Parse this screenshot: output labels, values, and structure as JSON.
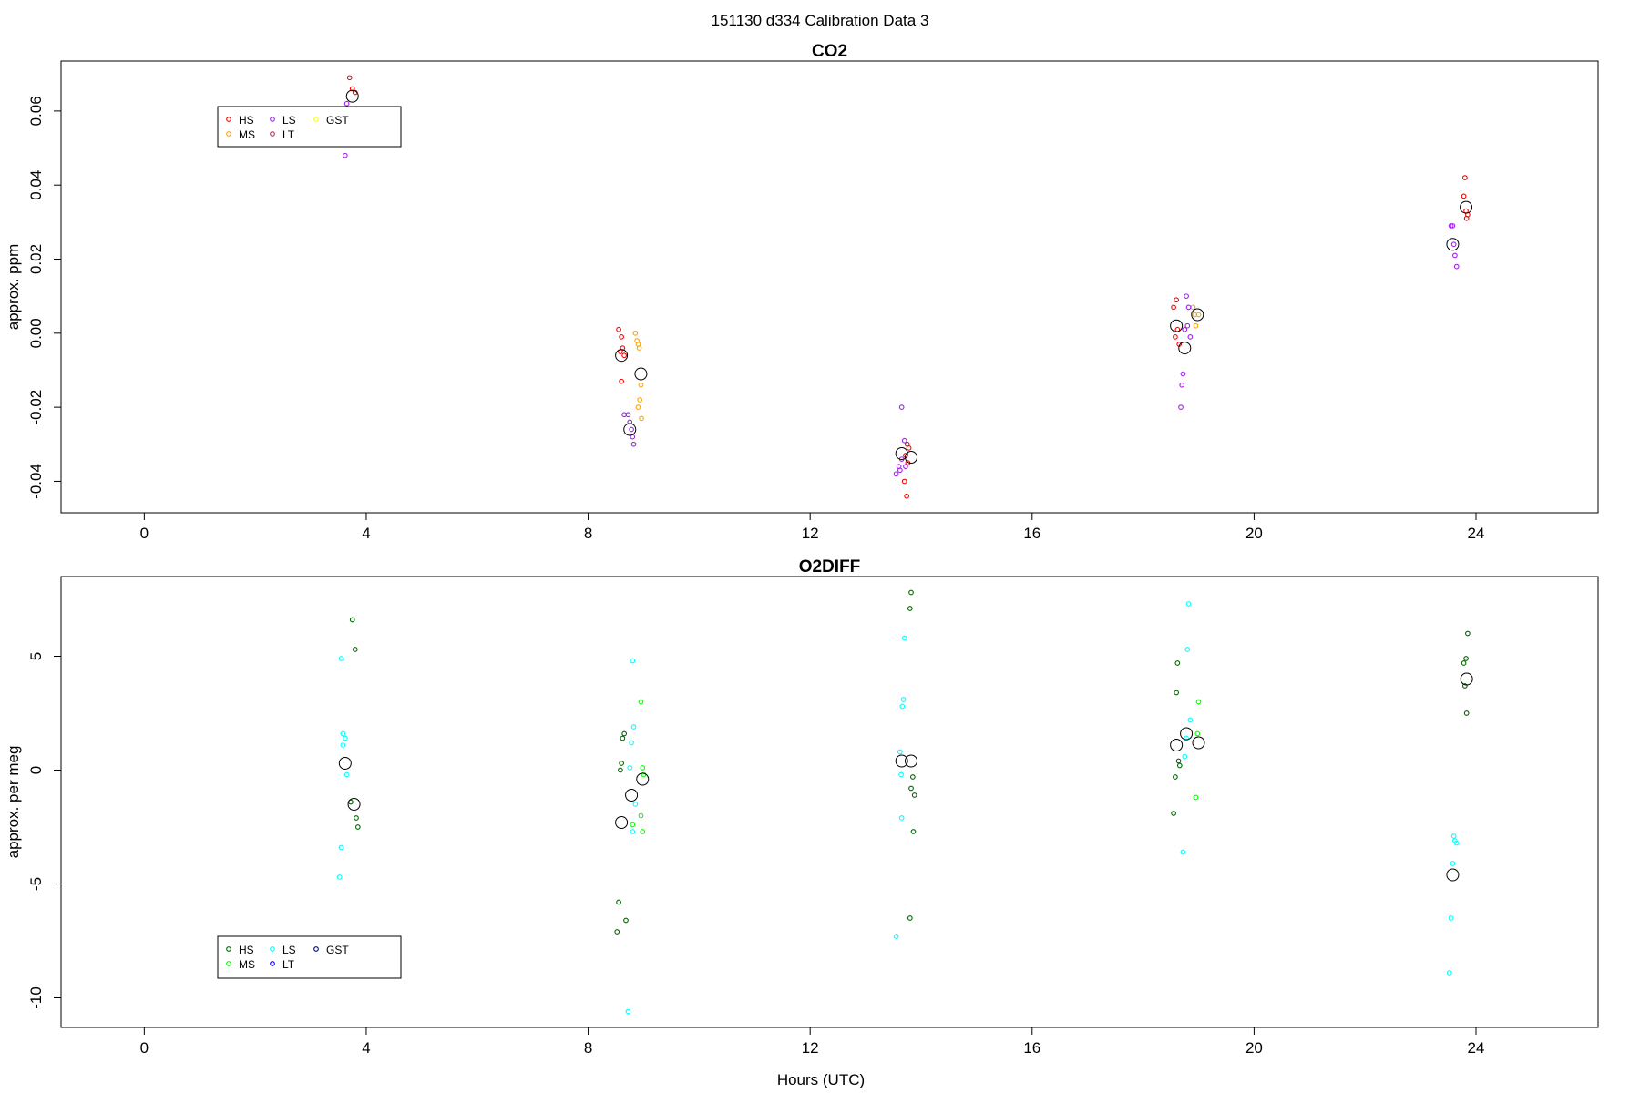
{
  "page": {
    "title": "151130   d334   Calibration Data 3",
    "xlabel": "Hours (UTC)"
  },
  "chart_data": [
    {
      "type": "scatter",
      "title": "CO2",
      "ylabel": "approx. ppm",
      "xlim": [
        -1.5,
        26.2
      ],
      "ylim": [
        -0.0485,
        0.0735
      ],
      "xticks": [
        0,
        4,
        8,
        12,
        16,
        20,
        24
      ],
      "yticks": [
        -0.04,
        -0.02,
        0.0,
        0.02,
        0.04,
        0.06
      ],
      "ytick_labels": [
        "-0.04",
        "-0.02",
        "0.00",
        "0.02",
        "0.04",
        "0.06"
      ],
      "legend": {
        "position": "top-left",
        "entries": [
          {
            "name": "HS",
            "color": "#ff0000"
          },
          {
            "name": "MS",
            "color": "#ffa500"
          },
          {
            "name": "LS",
            "color": "#a020f0"
          },
          {
            "name": "LT",
            "color": "#b03060"
          },
          {
            "name": "GST",
            "color": "#ffff00"
          }
        ]
      },
      "series": [
        {
          "name": "HS",
          "color": "#ff0000",
          "points": [
            [
              3.7,
              0.069
            ],
            [
              3.75,
              0.066
            ],
            [
              3.8,
              0.065
            ],
            [
              8.55,
              0.001
            ],
            [
              8.6,
              -0.001
            ],
            [
              8.62,
              -0.004
            ],
            [
              8.58,
              -0.005
            ],
            [
              8.65,
              -0.006
            ],
            [
              8.6,
              -0.013
            ],
            [
              13.75,
              -0.03
            ],
            [
              13.78,
              -0.031
            ],
            [
              13.72,
              -0.033
            ],
            [
              13.76,
              -0.035
            ],
            [
              13.7,
              -0.04
            ],
            [
              13.74,
              -0.044
            ],
            [
              18.6,
              0.009
            ],
            [
              18.55,
              0.007
            ],
            [
              18.62,
              0.001
            ],
            [
              18.58,
              -0.001
            ],
            [
              18.65,
              -0.003
            ],
            [
              23.8,
              0.042
            ],
            [
              23.78,
              0.037
            ],
            [
              23.82,
              0.033
            ],
            [
              23.85,
              0.032
            ],
            [
              23.83,
              0.031
            ]
          ]
        },
        {
          "name": "MS",
          "color": "#ffa500",
          "points": [
            [
              8.85,
              0.0
            ],
            [
              8.88,
              -0.002
            ],
            [
              8.9,
              -0.003
            ],
            [
              8.92,
              -0.004
            ],
            [
              8.95,
              -0.014
            ],
            [
              8.93,
              -0.018
            ],
            [
              8.9,
              -0.02
            ],
            [
              8.96,
              -0.023
            ],
            [
              18.9,
              0.007
            ],
            [
              18.93,
              0.005
            ],
            [
              18.95,
              0.002
            ],
            [
              19.0,
              0.005
            ]
          ]
        },
        {
          "name": "LS",
          "color": "#a020f0",
          "points": [
            [
              3.65,
              0.062
            ],
            [
              3.62,
              0.048
            ],
            [
              8.65,
              -0.022
            ],
            [
              8.72,
              -0.022
            ],
            [
              8.75,
              -0.024
            ],
            [
              8.78,
              -0.026
            ],
            [
              8.8,
              -0.028
            ],
            [
              8.82,
              -0.03
            ],
            [
              13.65,
              -0.02
            ],
            [
              13.7,
              -0.029
            ],
            [
              13.6,
              -0.036
            ],
            [
              13.62,
              -0.037
            ],
            [
              13.55,
              -0.038
            ],
            [
              13.72,
              -0.036
            ],
            [
              13.65,
              -0.034
            ],
            [
              18.78,
              0.01
            ],
            [
              18.82,
              0.007
            ],
            [
              18.8,
              0.002
            ],
            [
              18.75,
              0.001
            ],
            [
              18.85,
              -0.001
            ],
            [
              18.72,
              -0.011
            ],
            [
              18.7,
              -0.014
            ],
            [
              18.68,
              -0.02
            ],
            [
              23.55,
              0.029
            ],
            [
              23.58,
              0.029
            ],
            [
              23.6,
              0.024
            ],
            [
              23.62,
              0.021
            ],
            [
              23.65,
              0.018
            ]
          ]
        }
      ],
      "means": [
        [
          3.75,
          0.064
        ],
        [
          8.6,
          -0.006
        ],
        [
          8.75,
          -0.026
        ],
        [
          8.95,
          -0.011
        ],
        [
          13.65,
          -0.0325
        ],
        [
          13.82,
          -0.0335
        ],
        [
          18.6,
          0.002
        ],
        [
          18.75,
          -0.004
        ],
        [
          18.98,
          0.005
        ],
        [
          23.58,
          0.024
        ],
        [
          23.82,
          0.034
        ]
      ]
    },
    {
      "type": "scatter",
      "title": "O2DIFF",
      "ylabel": "approx. per meg",
      "xlim": [
        -1.5,
        26.2
      ],
      "ylim": [
        -11.3,
        8.5
      ],
      "xticks": [
        0,
        4,
        8,
        12,
        16,
        20,
        24
      ],
      "yticks": [
        -10,
        -5,
        0,
        5
      ],
      "ytick_labels": [
        "-10",
        "-5",
        "0",
        "5"
      ],
      "legend": {
        "position": "bottom-left",
        "entries": [
          {
            "name": "HS",
            "color": "#006400"
          },
          {
            "name": "MS",
            "color": "#00ff00"
          },
          {
            "name": "LS",
            "color": "#00ffff"
          },
          {
            "name": "LT",
            "color": "#0000ff"
          },
          {
            "name": "GST",
            "color": "#000080"
          }
        ]
      },
      "series": [
        {
          "name": "HS",
          "color": "#006400",
          "points": [
            [
              3.75,
              6.6
            ],
            [
              3.8,
              5.3
            ],
            [
              3.72,
              -1.4
            ],
            [
              3.82,
              -2.1
            ],
            [
              3.85,
              -2.5
            ],
            [
              8.65,
              1.6
            ],
            [
              8.62,
              1.4
            ],
            [
              8.6,
              0.3
            ],
            [
              8.58,
              0.0
            ],
            [
              8.55,
              -5.8
            ],
            [
              8.52,
              -7.1
            ],
            [
              8.68,
              -6.6
            ],
            [
              13.82,
              7.8
            ],
            [
              13.8,
              7.1
            ],
            [
              13.85,
              -0.3
            ],
            [
              13.82,
              -0.8
            ],
            [
              13.88,
              -1.1
            ],
            [
              13.86,
              -2.7
            ],
            [
              13.8,
              -6.5
            ],
            [
              18.62,
              4.7
            ],
            [
              18.6,
              3.4
            ],
            [
              18.64,
              0.4
            ],
            [
              18.66,
              0.2
            ],
            [
              18.58,
              -0.3
            ],
            [
              18.55,
              -1.9
            ],
            [
              23.85,
              6.0
            ],
            [
              23.82,
              4.9
            ],
            [
              23.78,
              4.7
            ],
            [
              23.8,
              3.7
            ],
            [
              23.83,
              2.5
            ]
          ]
        },
        {
          "name": "MS",
          "color": "#00ff00",
          "points": [
            [
              8.95,
              3.0
            ],
            [
              8.98,
              0.1
            ],
            [
              9.0,
              -0.2
            ],
            [
              8.95,
              -2.0
            ],
            [
              8.98,
              -2.7
            ],
            [
              8.8,
              -2.4
            ],
            [
              19.0,
              3.0
            ],
            [
              18.98,
              1.6
            ],
            [
              18.95,
              -1.2
            ]
          ]
        },
        {
          "name": "LS",
          "color": "#00ffff",
          "points": [
            [
              3.55,
              4.9
            ],
            [
              3.58,
              1.6
            ],
            [
              3.62,
              1.4
            ],
            [
              3.58,
              1.1
            ],
            [
              3.65,
              -0.2
            ],
            [
              3.55,
              -3.4
            ],
            [
              3.52,
              -4.7
            ],
            [
              8.8,
              4.8
            ],
            [
              8.82,
              1.9
            ],
            [
              8.78,
              1.2
            ],
            [
              8.75,
              0.1
            ],
            [
              8.85,
              -1.5
            ],
            [
              8.8,
              -2.7
            ],
            [
              8.72,
              -10.6
            ],
            [
              13.7,
              5.8
            ],
            [
              13.68,
              3.1
            ],
            [
              13.66,
              2.8
            ],
            [
              13.62,
              0.8
            ],
            [
              13.64,
              -0.2
            ],
            [
              13.65,
              -2.1
            ],
            [
              13.55,
              -7.3
            ],
            [
              18.82,
              7.3
            ],
            [
              18.8,
              5.3
            ],
            [
              18.85,
              2.2
            ],
            [
              18.78,
              1.4
            ],
            [
              18.75,
              0.6
            ],
            [
              18.72,
              -3.6
            ],
            [
              23.6,
              -2.9
            ],
            [
              23.62,
              -3.1
            ],
            [
              23.65,
              -3.2
            ],
            [
              23.58,
              -4.1
            ],
            [
              23.55,
              -6.5
            ],
            [
              23.52,
              -8.9
            ]
          ]
        }
      ],
      "means": [
        [
          3.62,
          0.3
        ],
        [
          3.78,
          -1.5
        ],
        [
          8.6,
          -2.3
        ],
        [
          8.78,
          -1.1
        ],
        [
          8.98,
          -0.4
        ],
        [
          13.65,
          0.4
        ],
        [
          13.82,
          0.4
        ],
        [
          18.6,
          1.1
        ],
        [
          18.78,
          1.6
        ],
        [
          19.0,
          1.2
        ],
        [
          23.58,
          -4.6
        ],
        [
          23.83,
          4.0
        ]
      ]
    }
  ]
}
